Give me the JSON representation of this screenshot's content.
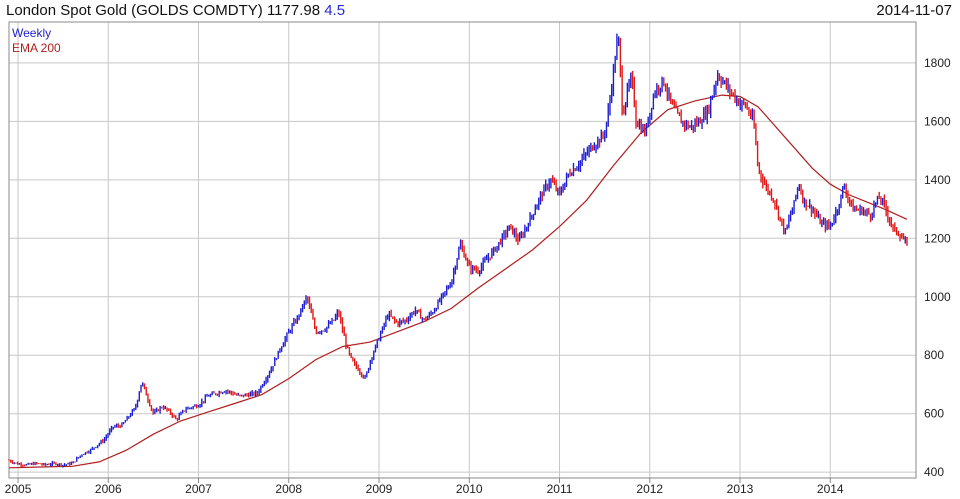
{
  "header": {
    "name": "London Spot Gold (GOLDS COMDTY)",
    "last": "1177.98",
    "change": "4.5",
    "date": "2014-11-07"
  },
  "chart_data": {
    "type": "line",
    "legend": [
      {
        "name": "Weekly",
        "color": "#1f1fd0"
      },
      {
        "name": "EMA 200",
        "color": "#b21e1e"
      }
    ],
    "colors": {
      "up": "#1f1fd0",
      "down": "#e01818",
      "ema": "#b21e1e",
      "grid": "#c8c8c8"
    },
    "x_ticks": [
      "2005",
      "2006",
      "2007",
      "2008",
      "2009",
      "2010",
      "2011",
      "2012",
      "2013",
      "2014"
    ],
    "xlim": [
      2004.9,
      2014.95
    ],
    "y_ticks": [
      400,
      600,
      800,
      1000,
      1200,
      1400,
      1600,
      1800
    ],
    "ylim": [
      380,
      1940
    ],
    "grid": true,
    "price": [
      [
        2004.9,
        440
      ],
      [
        2005.0,
        428
      ],
      [
        2005.1,
        425
      ],
      [
        2005.2,
        430
      ],
      [
        2005.3,
        425
      ],
      [
        2005.4,
        430
      ],
      [
        2005.5,
        425
      ],
      [
        2005.6,
        430
      ],
      [
        2005.7,
        460
      ],
      [
        2005.8,
        475
      ],
      [
        2005.95,
        510
      ],
      [
        2006.05,
        555
      ],
      [
        2006.15,
        560
      ],
      [
        2006.3,
        620
      ],
      [
        2006.37,
        710
      ],
      [
        2006.45,
        640
      ],
      [
        2006.5,
        600
      ],
      [
        2006.6,
        625
      ],
      [
        2006.7,
        600
      ],
      [
        2006.75,
        580
      ],
      [
        2006.85,
        615
      ],
      [
        2007.0,
        630
      ],
      [
        2007.1,
        660
      ],
      [
        2007.2,
        670
      ],
      [
        2007.3,
        680
      ],
      [
        2007.45,
        660
      ],
      [
        2007.55,
        665
      ],
      [
        2007.65,
        670
      ],
      [
        2007.8,
        750
      ],
      [
        2007.9,
        820
      ],
      [
        2008.0,
        880
      ],
      [
        2008.1,
        930
      ],
      [
        2008.2,
        1000
      ],
      [
        2008.3,
        880
      ],
      [
        2008.4,
        890
      ],
      [
        2008.5,
        920
      ],
      [
        2008.55,
        950
      ],
      [
        2008.6,
        880
      ],
      [
        2008.65,
        820
      ],
      [
        2008.7,
        780
      ],
      [
        2008.8,
        740
      ],
      [
        2008.85,
        720
      ],
      [
        2008.9,
        780
      ],
      [
        2009.0,
        860
      ],
      [
        2009.1,
        940
      ],
      [
        2009.2,
        910
      ],
      [
        2009.3,
        920
      ],
      [
        2009.4,
        955
      ],
      [
        2009.5,
        920
      ],
      [
        2009.6,
        950
      ],
      [
        2009.7,
        1000
      ],
      [
        2009.8,
        1050
      ],
      [
        2009.9,
        1180
      ],
      [
        2010.0,
        1100
      ],
      [
        2010.1,
        1090
      ],
      [
        2010.2,
        1130
      ],
      [
        2010.3,
        1170
      ],
      [
        2010.45,
        1240
      ],
      [
        2010.55,
        1190
      ],
      [
        2010.65,
        1250
      ],
      [
        2010.8,
        1350
      ],
      [
        2010.9,
        1400
      ],
      [
        2011.0,
        1350
      ],
      [
        2011.1,
        1420
      ],
      [
        2011.2,
        1450
      ],
      [
        2011.35,
        1510
      ],
      [
        2011.45,
        1540
      ],
      [
        2011.5,
        1560
      ],
      [
        2011.55,
        1650
      ],
      [
        2011.6,
        1780
      ],
      [
        2011.65,
        1900
      ],
      [
        2011.7,
        1620
      ],
      [
        2011.75,
        1700
      ],
      [
        2011.8,
        1750
      ],
      [
        2011.85,
        1600
      ],
      [
        2011.95,
        1560
      ],
      [
        2012.05,
        1700
      ],
      [
        2012.15,
        1740
      ],
      [
        2012.25,
        1650
      ],
      [
        2012.35,
        1600
      ],
      [
        2012.45,
        1580
      ],
      [
        2012.55,
        1600
      ],
      [
        2012.65,
        1640
      ],
      [
        2012.75,
        1760
      ],
      [
        2012.85,
        1720
      ],
      [
        2012.95,
        1680
      ],
      [
        2013.0,
        1660
      ],
      [
        2013.05,
        1660
      ],
      [
        2013.15,
        1600
      ],
      [
        2013.2,
        1440
      ],
      [
        2013.28,
        1380
      ],
      [
        2013.38,
        1330
      ],
      [
        2013.45,
        1260
      ],
      [
        2013.5,
        1220
      ],
      [
        2013.6,
        1320
      ],
      [
        2013.65,
        1390
      ],
      [
        2013.7,
        1330
      ],
      [
        2013.8,
        1300
      ],
      [
        2013.9,
        1250
      ],
      [
        2014.0,
        1240
      ],
      [
        2014.1,
        1320
      ],
      [
        2014.15,
        1380
      ],
      [
        2014.25,
        1300
      ],
      [
        2014.35,
        1295
      ],
      [
        2014.45,
        1280
      ],
      [
        2014.5,
        1320
      ],
      [
        2014.55,
        1340
      ],
      [
        2014.6,
        1310
      ],
      [
        2014.7,
        1230
      ],
      [
        2014.75,
        1220
      ],
      [
        2014.8,
        1200
      ],
      [
        2014.85,
        1178
      ]
    ],
    "ema": [
      [
        2004.9,
        415
      ],
      [
        2005.3,
        418
      ],
      [
        2005.6,
        420
      ],
      [
        2005.9,
        435
      ],
      [
        2006.2,
        475
      ],
      [
        2006.5,
        530
      ],
      [
        2006.8,
        575
      ],
      [
        2007.1,
        605
      ],
      [
        2007.4,
        635
      ],
      [
        2007.7,
        665
      ],
      [
        2008.0,
        720
      ],
      [
        2008.3,
        785
      ],
      [
        2008.6,
        830
      ],
      [
        2008.9,
        845
      ],
      [
        2009.2,
        880
      ],
      [
        2009.5,
        915
      ],
      [
        2009.8,
        960
      ],
      [
        2010.1,
        1030
      ],
      [
        2010.4,
        1095
      ],
      [
        2010.7,
        1160
      ],
      [
        2011.0,
        1240
      ],
      [
        2011.3,
        1330
      ],
      [
        2011.6,
        1450
      ],
      [
        2011.9,
        1560
      ],
      [
        2012.2,
        1640
      ],
      [
        2012.5,
        1670
      ],
      [
        2012.8,
        1690
      ],
      [
        2013.0,
        1685
      ],
      [
        2013.2,
        1650
      ],
      [
        2013.4,
        1580
      ],
      [
        2013.6,
        1510
      ],
      [
        2013.8,
        1440
      ],
      [
        2014.0,
        1385
      ],
      [
        2014.2,
        1350
      ],
      [
        2014.4,
        1325
      ],
      [
        2014.6,
        1300
      ],
      [
        2014.85,
        1265
      ]
    ]
  }
}
